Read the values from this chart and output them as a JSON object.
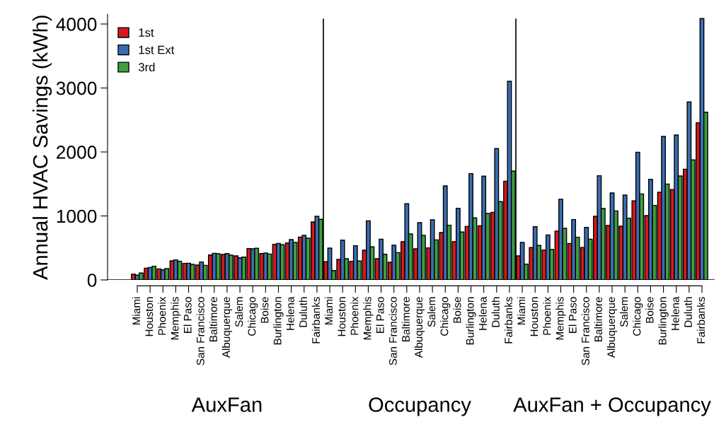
{
  "chart_data": {
    "type": "bar",
    "ylabel": "Annual HVAC Savings (kWh)",
    "categories": [
      "Miami",
      "Houston",
      "Phoenix",
      "Memphis",
      "El Paso",
      "San Francisco",
      "Baltimore",
      "Albuquerque",
      "Salem",
      "Chicago",
      "Boise",
      "Burlington",
      "Helena",
      "Duluth",
      "Fairbanks",
      "Miami",
      "Houston",
      "Phoenix",
      "Memphis",
      "El Paso",
      "San Francisco",
      "Baltimore",
      "Albuquerque",
      "Salem",
      "Chicago",
      "Boise",
      "Burlington",
      "Helena",
      "Duluth",
      "Fairbanks",
      "Miami",
      "Houston",
      "Phoenix",
      "Memphis",
      "El Paso",
      "San Francisco",
      "Baltimore",
      "Albuquerque",
      "Salem",
      "Chicago",
      "Boise",
      "Burlington",
      "Helena",
      "Duluth",
      "Fairbanks"
    ],
    "series": [
      {
        "name": "1st",
        "color": "#d7191c",
        "values": [
          88,
          184,
          173,
          298,
          258,
          232,
          390,
          398,
          376,
          490,
          412,
          556,
          578,
          670,
          906,
          284,
          320,
          291,
          464,
          331,
          276,
          597,
          486,
          501,
          740,
          597,
          836,
          847,
          1057,
          1543,
          376,
          505,
          468,
          762,
          571,
          505,
          994,
          851,
          840,
          1234,
          1006,
          1370,
          1411,
          1731,
          2457
        ]
      },
      {
        "name": "1st Ext",
        "color": "#3a6eb4",
        "values": [
          74,
          195,
          158,
          313,
          261,
          280,
          416,
          412,
          346,
          486,
          420,
          571,
          630,
          696,
          994,
          497,
          622,
          534,
          924,
          637,
          541,
          1190,
          895,
          939,
          1470,
          1120,
          1661,
          1621,
          2052,
          3105,
          586,
          832,
          703,
          1260,
          943,
          821,
          1628,
          1359,
          1326,
          1996,
          1573,
          2243,
          2265,
          2781,
          4085
        ]
      },
      {
        "name": "3rd",
        "color": "#3f9f3f",
        "values": [
          107,
          214,
          177,
          291,
          243,
          228,
          409,
          387,
          357,
          494,
          405,
          549,
          586,
          652,
          947,
          147,
          331,
          295,
          516,
          401,
          427,
          718,
          696,
          626,
          855,
          748,
          969,
          1039,
          1223,
          1702,
          247,
          538,
          475,
          807,
          667,
          637,
          1116,
          1079,
          965,
          1344,
          1164,
          1499,
          1624,
          1875,
          2622
        ]
      }
    ],
    "ylim": [
      0,
      4150
    ],
    "yticks": [
      0,
      1000,
      2000,
      3000,
      4000
    ],
    "annotations": [
      "AuxFan",
      "Occupancy",
      "AuxFan + Occupancy"
    ],
    "legend": "top left",
    "grid": false
  }
}
